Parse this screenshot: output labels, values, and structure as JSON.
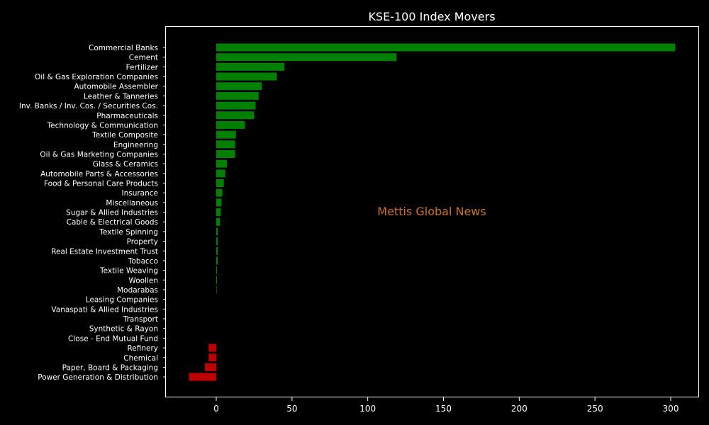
{
  "chart_data": {
    "type": "bar",
    "orientation": "horizontal",
    "title": "KSE-100 Index Movers",
    "xlabel": "",
    "ylabel": "",
    "xlim": [
      -34,
      303
    ],
    "x_ticks": [
      0,
      50,
      100,
      150,
      200,
      250,
      300
    ],
    "grid": false,
    "legend": "none",
    "watermark": "Mettis Global News",
    "colors": {
      "background": "#000000",
      "positive": "#008000",
      "negative": "#c00000",
      "axis": "#ffffff",
      "watermark": "#c8742a"
    },
    "categories": [
      "Commercial Banks",
      "Cement",
      "Fertilizer",
      "Oil & Gas Exploration Companies",
      "Automobile Assembler",
      "Leather & Tanneries",
      "Inv. Banks / Inv. Cos. / Securities Cos.",
      "Pharmaceuticals",
      "Technology & Communication",
      "Textile Composite",
      "Engineering",
      "Oil & Gas Marketing Companies",
      "Glass & Ceramics",
      "Automobile Parts & Accessories",
      "Food & Personal Care Products",
      "Insurance",
      "Miscellaneous",
      "Sugar & Allied Industries",
      "Cable & Electrical Goods",
      "Textile Spinning",
      "Property",
      "Real Estate Investment Trust",
      "Tobacco",
      "Textile Weaving",
      "Woollen",
      "Modarabas",
      "Leasing Companies",
      "Vanaspati & Allied Industries",
      "Transport",
      "Synthetic & Rayon",
      "Close - End Mutual Fund",
      "Refinery",
      "Chemical",
      "Paper, Board & Packaging",
      "Power Generation & Distribution"
    ],
    "values": [
      303,
      119,
      45,
      40,
      30,
      28,
      26,
      25,
      19,
      13,
      12.5,
      12.5,
      7,
      6,
      5,
      4,
      3.5,
      3,
      2.5,
      1,
      1,
      1,
      1,
      0.5,
      0.5,
      0.3,
      0,
      0,
      0,
      0,
      0,
      -5,
      -5,
      -7.5,
      -18
    ]
  }
}
